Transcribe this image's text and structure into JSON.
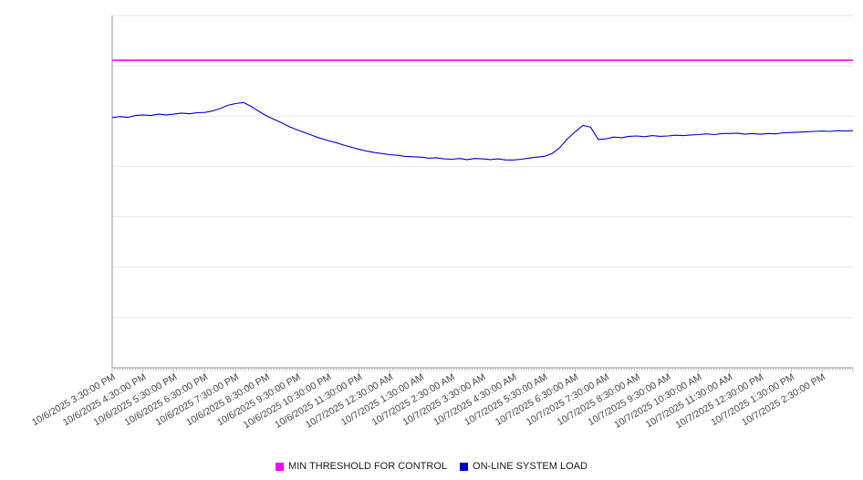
{
  "chart_data": {
    "type": "line",
    "title": "",
    "xlabel": "",
    "ylabel": "",
    "ylim": [
      0,
      100
    ],
    "grid_divisions": 7,
    "grid_on": true,
    "legend_position": "bottom",
    "grid_color": "#e7e7e7",
    "axis_color": "#9a9a9a",
    "label_color": "#444444",
    "x_hours_span": 24,
    "x_tick_labels": [
      "10/6/2025 3:30:00 PM",
      "10/6/2025 4:30:00 PM",
      "10/6/2025 5:30:00 PM",
      "10/6/2025 6:30:00 PM",
      "10/6/2025 7:30:00 PM",
      "10/6/2025 8:30:00 PM",
      "10/6/2025 9:30:00 PM",
      "10/6/2025 10:30:00 PM",
      "10/6/2025 11:30:00 PM",
      "10/7/2025 12:30:00 AM",
      "10/7/2025 1:30:00 AM",
      "10/7/2025 2:30:00 AM",
      "10/7/2025 3:30:00 AM",
      "10/7/2025 4:30:00 AM",
      "10/7/2025 5:30:00 AM",
      "10/7/2025 6:30:00 AM",
      "10/7/2025 7:30:00 AM",
      "10/7/2025 8:30:00 AM",
      "10/7/2025 9:30:00 AM",
      "10/7/2025 10:30:00 AM",
      "10/7/2025 11:30:00 AM",
      "10/7/2025 12:30:00 PM",
      "10/7/2025 1:30:00 PM",
      "10/7/2025 2:30:00 PM"
    ],
    "series": [
      {
        "name": "MIN THRESHOLD FOR CONTROL",
        "color": "#ff00ff",
        "style": "threshold",
        "value": 87.3
      },
      {
        "name": "ON-LINE SYSTEM LOAD",
        "color": "#0000cd",
        "style": "line",
        "points_per_hour": 4,
        "values": [
          71.0,
          71.3,
          71.1,
          71.6,
          71.8,
          71.6,
          72.0,
          71.8,
          72.0,
          72.3,
          72.1,
          72.4,
          72.5,
          72.9,
          73.6,
          74.5,
          75.0,
          75.3,
          74.2,
          72.8,
          71.5,
          70.5,
          69.5,
          68.4,
          67.5,
          66.7,
          65.9,
          65.1,
          64.5,
          63.9,
          63.2,
          62.6,
          62.0,
          61.5,
          61.1,
          60.8,
          60.5,
          60.3,
          60.0,
          59.9,
          59.8,
          59.5,
          59.6,
          59.3,
          59.2,
          59.4,
          59.1,
          59.4,
          59.3,
          59.1,
          59.3,
          59.0,
          59.0,
          59.2,
          59.5,
          59.8,
          60.0,
          60.8,
          62.5,
          65.0,
          67.0,
          68.8,
          68.3,
          64.8,
          65.0,
          65.5,
          65.3,
          65.7,
          65.8,
          65.6,
          65.9,
          65.7,
          65.8,
          66.0,
          65.9,
          66.1,
          66.2,
          66.4,
          66.2,
          66.5,
          66.5,
          66.6,
          66.3,
          66.5,
          66.3,
          66.5,
          66.4,
          66.7,
          66.8,
          66.9,
          67.0,
          67.1,
          67.2,
          67.1,
          67.3,
          67.2,
          67.3
        ]
      }
    ]
  },
  "legend": {
    "items": [
      {
        "label": "MIN THRESHOLD FOR CONTROL",
        "color": "#ff00ff"
      },
      {
        "label": "ON-LINE SYSTEM LOAD",
        "color": "#0000cd"
      }
    ]
  }
}
